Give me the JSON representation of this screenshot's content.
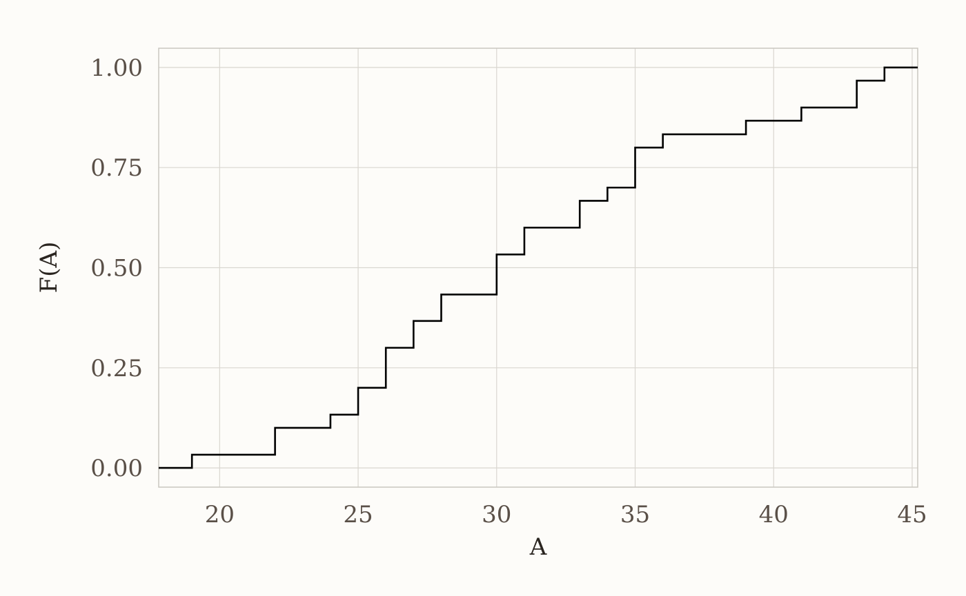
{
  "chart_data": {
    "type": "line",
    "subtype": "step (empirical CDF)",
    "title": "",
    "xlabel": "A",
    "ylabel": "F(A)",
    "xlim": [
      17.8,
      45.2
    ],
    "ylim": [
      -0.048,
      1.048
    ],
    "x_ticks": [
      20,
      25,
      30,
      35,
      40,
      45
    ],
    "x_tick_labels": [
      "20",
      "25",
      "30",
      "35",
      "40",
      "45"
    ],
    "y_ticks": [
      0,
      0.25,
      0.5,
      0.75,
      1.0
    ],
    "y_tick_labels": [
      "0.00",
      "0.25",
      "0.50",
      "0.75",
      "1.00"
    ],
    "grid": true,
    "legend": "none",
    "series": [
      {
        "color": "#000000",
        "steps": [
          {
            "x": 17.8,
            "y": 0.0
          },
          {
            "x": 19,
            "y": 0.033
          },
          {
            "x": 22,
            "y": 0.1
          },
          {
            "x": 24,
            "y": 0.133
          },
          {
            "x": 25,
            "y": 0.2
          },
          {
            "x": 26,
            "y": 0.3
          },
          {
            "x": 27,
            "y": 0.367
          },
          {
            "x": 28,
            "y": 0.433
          },
          {
            "x": 30,
            "y": 0.533
          },
          {
            "x": 31,
            "y": 0.6
          },
          {
            "x": 33,
            "y": 0.667
          },
          {
            "x": 34,
            "y": 0.7
          },
          {
            "x": 35,
            "y": 0.8
          },
          {
            "x": 36,
            "y": 0.833
          },
          {
            "x": 39,
            "y": 0.867
          },
          {
            "x": 41,
            "y": 0.9
          },
          {
            "x": 43,
            "y": 0.967
          },
          {
            "x": 44,
            "y": 1.0
          }
        ],
        "x_end": 45.2
      }
    ]
  }
}
